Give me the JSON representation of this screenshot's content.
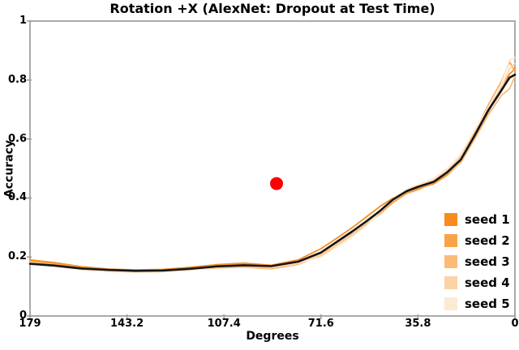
{
  "title": "Rotation +X (AlexNet: Dropout at Test Time)",
  "chart_data": {
    "type": "line",
    "title": "Rotation +X (AlexNet: Dropout at Test Time)",
    "xlabel": "Degrees",
    "ylabel": "Accuracy",
    "xlim": [
      179,
      0
    ],
    "ylim": [
      0,
      1
    ],
    "grid": false,
    "background": "#ffffff",
    "frame_color": "#ababab",
    "tick_color": "#9a9a9a",
    "legend_position": "lower right",
    "x_ticks": {
      "values": [
        179,
        143.2,
        107.4,
        71.6,
        35.8,
        0
      ],
      "labels": [
        "179",
        "143.2",
        "107.4",
        "71.6",
        "35.8",
        "0"
      ]
    },
    "y_ticks": {
      "values": [
        1,
        0.8,
        0.6,
        0.4,
        0.2,
        0
      ],
      "labels": [
        "1",
        "0.8",
        "0.6",
        "0.4",
        "0.2",
        "0"
      ]
    },
    "x_degrees": [
      179,
      170,
      160,
      150,
      140,
      130,
      120,
      110,
      100,
      90,
      80,
      71.6,
      65,
      60,
      55,
      50,
      45,
      40,
      35.8,
      30,
      25,
      20,
      15,
      10,
      5,
      2,
      0
    ],
    "series": [
      {
        "name": "seed 1",
        "color": "#f78c1e",
        "width": 1.8,
        "in_legend": true,
        "values": [
          0.19,
          0.181,
          0.167,
          0.159,
          0.156,
          0.158,
          0.165,
          0.174,
          0.179,
          0.172,
          0.19,
          0.228,
          0.268,
          0.3,
          0.335,
          0.37,
          0.4,
          0.418,
          0.432,
          0.448,
          0.478,
          0.522,
          0.6,
          0.69,
          0.775,
          0.82,
          0.838
        ]
      },
      {
        "name": "seed 2",
        "color": "#f9a348",
        "width": 1.8,
        "in_legend": true,
        "values": [
          0.185,
          0.176,
          0.164,
          0.157,
          0.153,
          0.155,
          0.161,
          0.17,
          0.175,
          0.17,
          0.182,
          0.21,
          0.25,
          0.282,
          0.312,
          0.345,
          0.385,
          0.415,
          0.428,
          0.452,
          0.49,
          0.54,
          0.622,
          0.712,
          0.795,
          0.862,
          0.83
        ]
      },
      {
        "name": "seed 3",
        "color": "#fabb77",
        "width": 1.8,
        "in_legend": true,
        "values": [
          0.183,
          0.172,
          0.159,
          0.152,
          0.149,
          0.15,
          0.156,
          0.163,
          0.166,
          0.16,
          0.175,
          0.205,
          0.245,
          0.276,
          0.31,
          0.348,
          0.39,
          0.42,
          0.436,
          0.458,
          0.482,
          0.52,
          0.598,
          0.68,
          0.748,
          0.77,
          0.812
        ]
      },
      {
        "name": "seed 4",
        "color": "#fcd3a6",
        "width": 1.8,
        "in_legend": true,
        "values": [
          0.181,
          0.17,
          0.158,
          0.151,
          0.148,
          0.15,
          0.157,
          0.166,
          0.17,
          0.164,
          0.178,
          0.208,
          0.248,
          0.28,
          0.315,
          0.352,
          0.392,
          0.425,
          0.44,
          0.46,
          0.495,
          0.538,
          0.615,
          0.7,
          0.772,
          0.838,
          0.856
        ]
      },
      {
        "name": "seed 5",
        "color": "#fdead5",
        "width": 1.8,
        "in_legend": true,
        "values": [
          0.179,
          0.168,
          0.156,
          0.15,
          0.147,
          0.149,
          0.156,
          0.165,
          0.172,
          0.168,
          0.18,
          0.2,
          0.238,
          0.27,
          0.305,
          0.35,
          0.398,
          0.43,
          0.446,
          0.466,
          0.5,
          0.548,
          0.628,
          0.705,
          0.788,
          0.868,
          0.876
        ]
      },
      {
        "name": "mean",
        "color": "#151515",
        "width": 2.6,
        "in_legend": false,
        "values": [
          0.177,
          0.171,
          0.161,
          0.156,
          0.153,
          0.154,
          0.16,
          0.168,
          0.172,
          0.169,
          0.184,
          0.215,
          0.256,
          0.287,
          0.32,
          0.355,
          0.395,
          0.423,
          0.438,
          0.455,
          0.487,
          0.53,
          0.61,
          0.695,
          0.765,
          0.808,
          0.818
        ]
      }
    ],
    "marker": {
      "type": "point",
      "degrees": 88,
      "accuracy": 0.449,
      "color": "#fb0000",
      "radius": 8
    },
    "legend_items": [
      {
        "label": "seed 1",
        "color": "#f78c1e"
      },
      {
        "label": "seed 2",
        "color": "#f9a348"
      },
      {
        "label": "seed 3",
        "color": "#fabb77"
      },
      {
        "label": "seed 4",
        "color": "#fcd3a6"
      },
      {
        "label": "seed 5",
        "color": "#fdead5"
      }
    ]
  }
}
